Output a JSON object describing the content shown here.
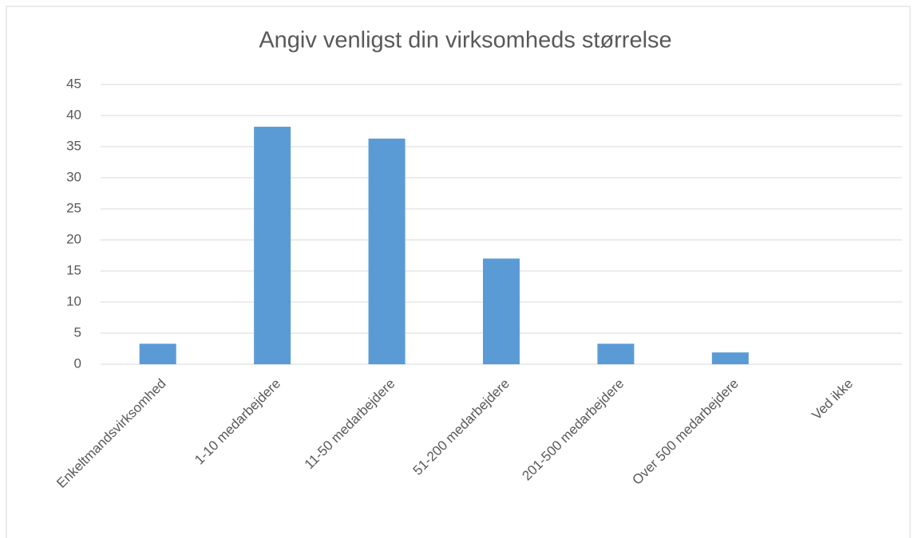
{
  "chart_data": {
    "type": "bar",
    "title": "Angiv venligst din virksomheds størrelse",
    "categories": [
      "Enkeltmandsvirksomhed",
      "1-10 medarbejdere",
      "11-50 medarbejdere",
      "51-200 medarbejdere",
      "201-500 medarbejdere",
      "Over 500 medarbejdere",
      "Ved ikke"
    ],
    "values": [
      3.3,
      38.2,
      36.3,
      17,
      3.3,
      1.9,
      0
    ],
    "color": "#5b9bd5",
    "ylim": [
      0,
      45
    ],
    "yticks": [
      0,
      5,
      10,
      15,
      20,
      25,
      30,
      35,
      40,
      45
    ],
    "grid": true
  }
}
